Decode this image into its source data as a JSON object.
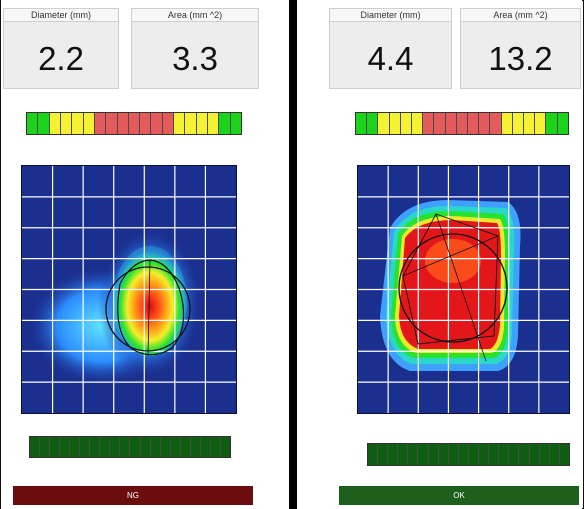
{
  "colors": {
    "grid_bg": "#1b2f8f",
    "bar_green": "#1bd31b",
    "bar_yellow": "#f4f233",
    "bar_red": "#e55a5a",
    "bar_dark_green": "#0f5f12",
    "status_ng": "#6b0d0d",
    "status_ok": "#1f5f1d"
  },
  "left": {
    "diameter_label": "Diameter (mm)",
    "diameter_value": "2.2",
    "area_label": "Area (mm ^2)",
    "area_value": "3.3",
    "status_label": "NG",
    "status_color": "#6b0d0d"
  },
  "right": {
    "diameter_label": "Diameter (mm)",
    "diameter_value": "4.4",
    "area_label": "Area (mm ^2)",
    "area_value": "13.2",
    "status_label": "OK",
    "status_color": "#1f5f1d"
  },
  "top_bar_pattern": [
    "g",
    "g",
    "y",
    "y",
    "y",
    "y",
    "r",
    "r",
    "r",
    "r",
    "r",
    "r",
    "r",
    "y",
    "y",
    "y",
    "y",
    "g",
    "g"
  ],
  "bottom_bar_segments": 20,
  "heatmap_grid": {
    "cols": 7,
    "rows": 8
  }
}
